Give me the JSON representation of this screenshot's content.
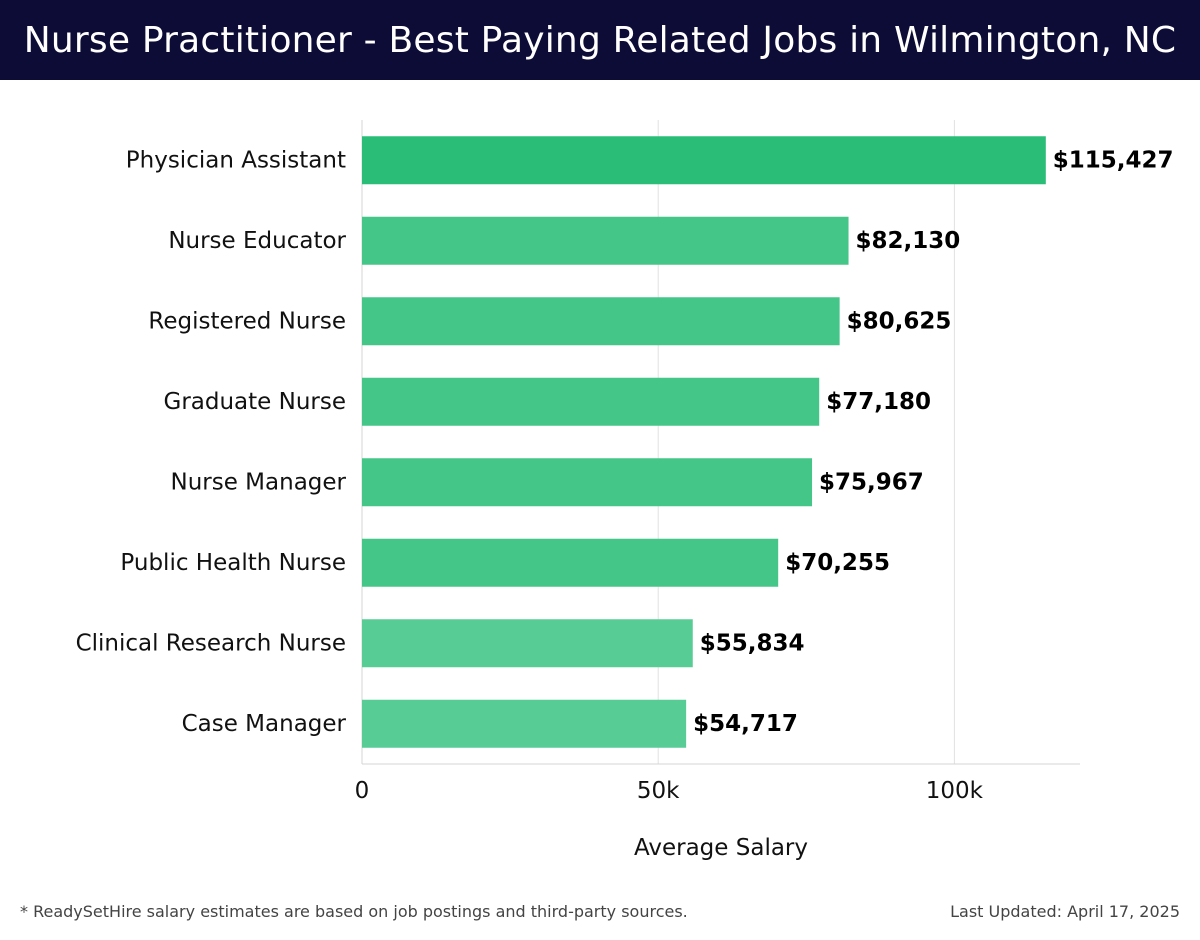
{
  "header": {
    "title": "Nurse Practitioner - Best Paying Related Jobs in Wilmington, NC"
  },
  "chart_data": {
    "type": "bar",
    "orientation": "horizontal",
    "categories": [
      "Physician Assistant",
      "Nurse Educator",
      "Registered Nurse",
      "Graduate Nurse",
      "Nurse Manager",
      "Public Health Nurse",
      "Clinical Research Nurse",
      "Case Manager"
    ],
    "values": [
      115427,
      82130,
      80625,
      77180,
      75967,
      70255,
      55834,
      54717
    ],
    "value_labels": [
      "$115,427",
      "$82,130",
      "$80,625",
      "$77,180",
      "$75,967",
      "$70,255",
      "$55,834",
      "$54,717"
    ],
    "xlabel": "Average Salary",
    "ylabel": "",
    "xlim": [
      0,
      121200
    ],
    "xticks": [
      0,
      50000,
      100000
    ],
    "xtick_labels": [
      "0",
      "50k",
      "100k"
    ],
    "grid": "vertical",
    "bar_colors": [
      "#2abd78",
      "#45c689",
      "#45c689",
      "#45c689",
      "#45c689",
      "#45c689",
      "#58cc95",
      "#58cc95"
    ]
  },
  "footer": {
    "note": "* ReadySetHire salary estimates are based on job postings and third-party sources.",
    "updated": "Last Updated: April 17, 2025"
  }
}
